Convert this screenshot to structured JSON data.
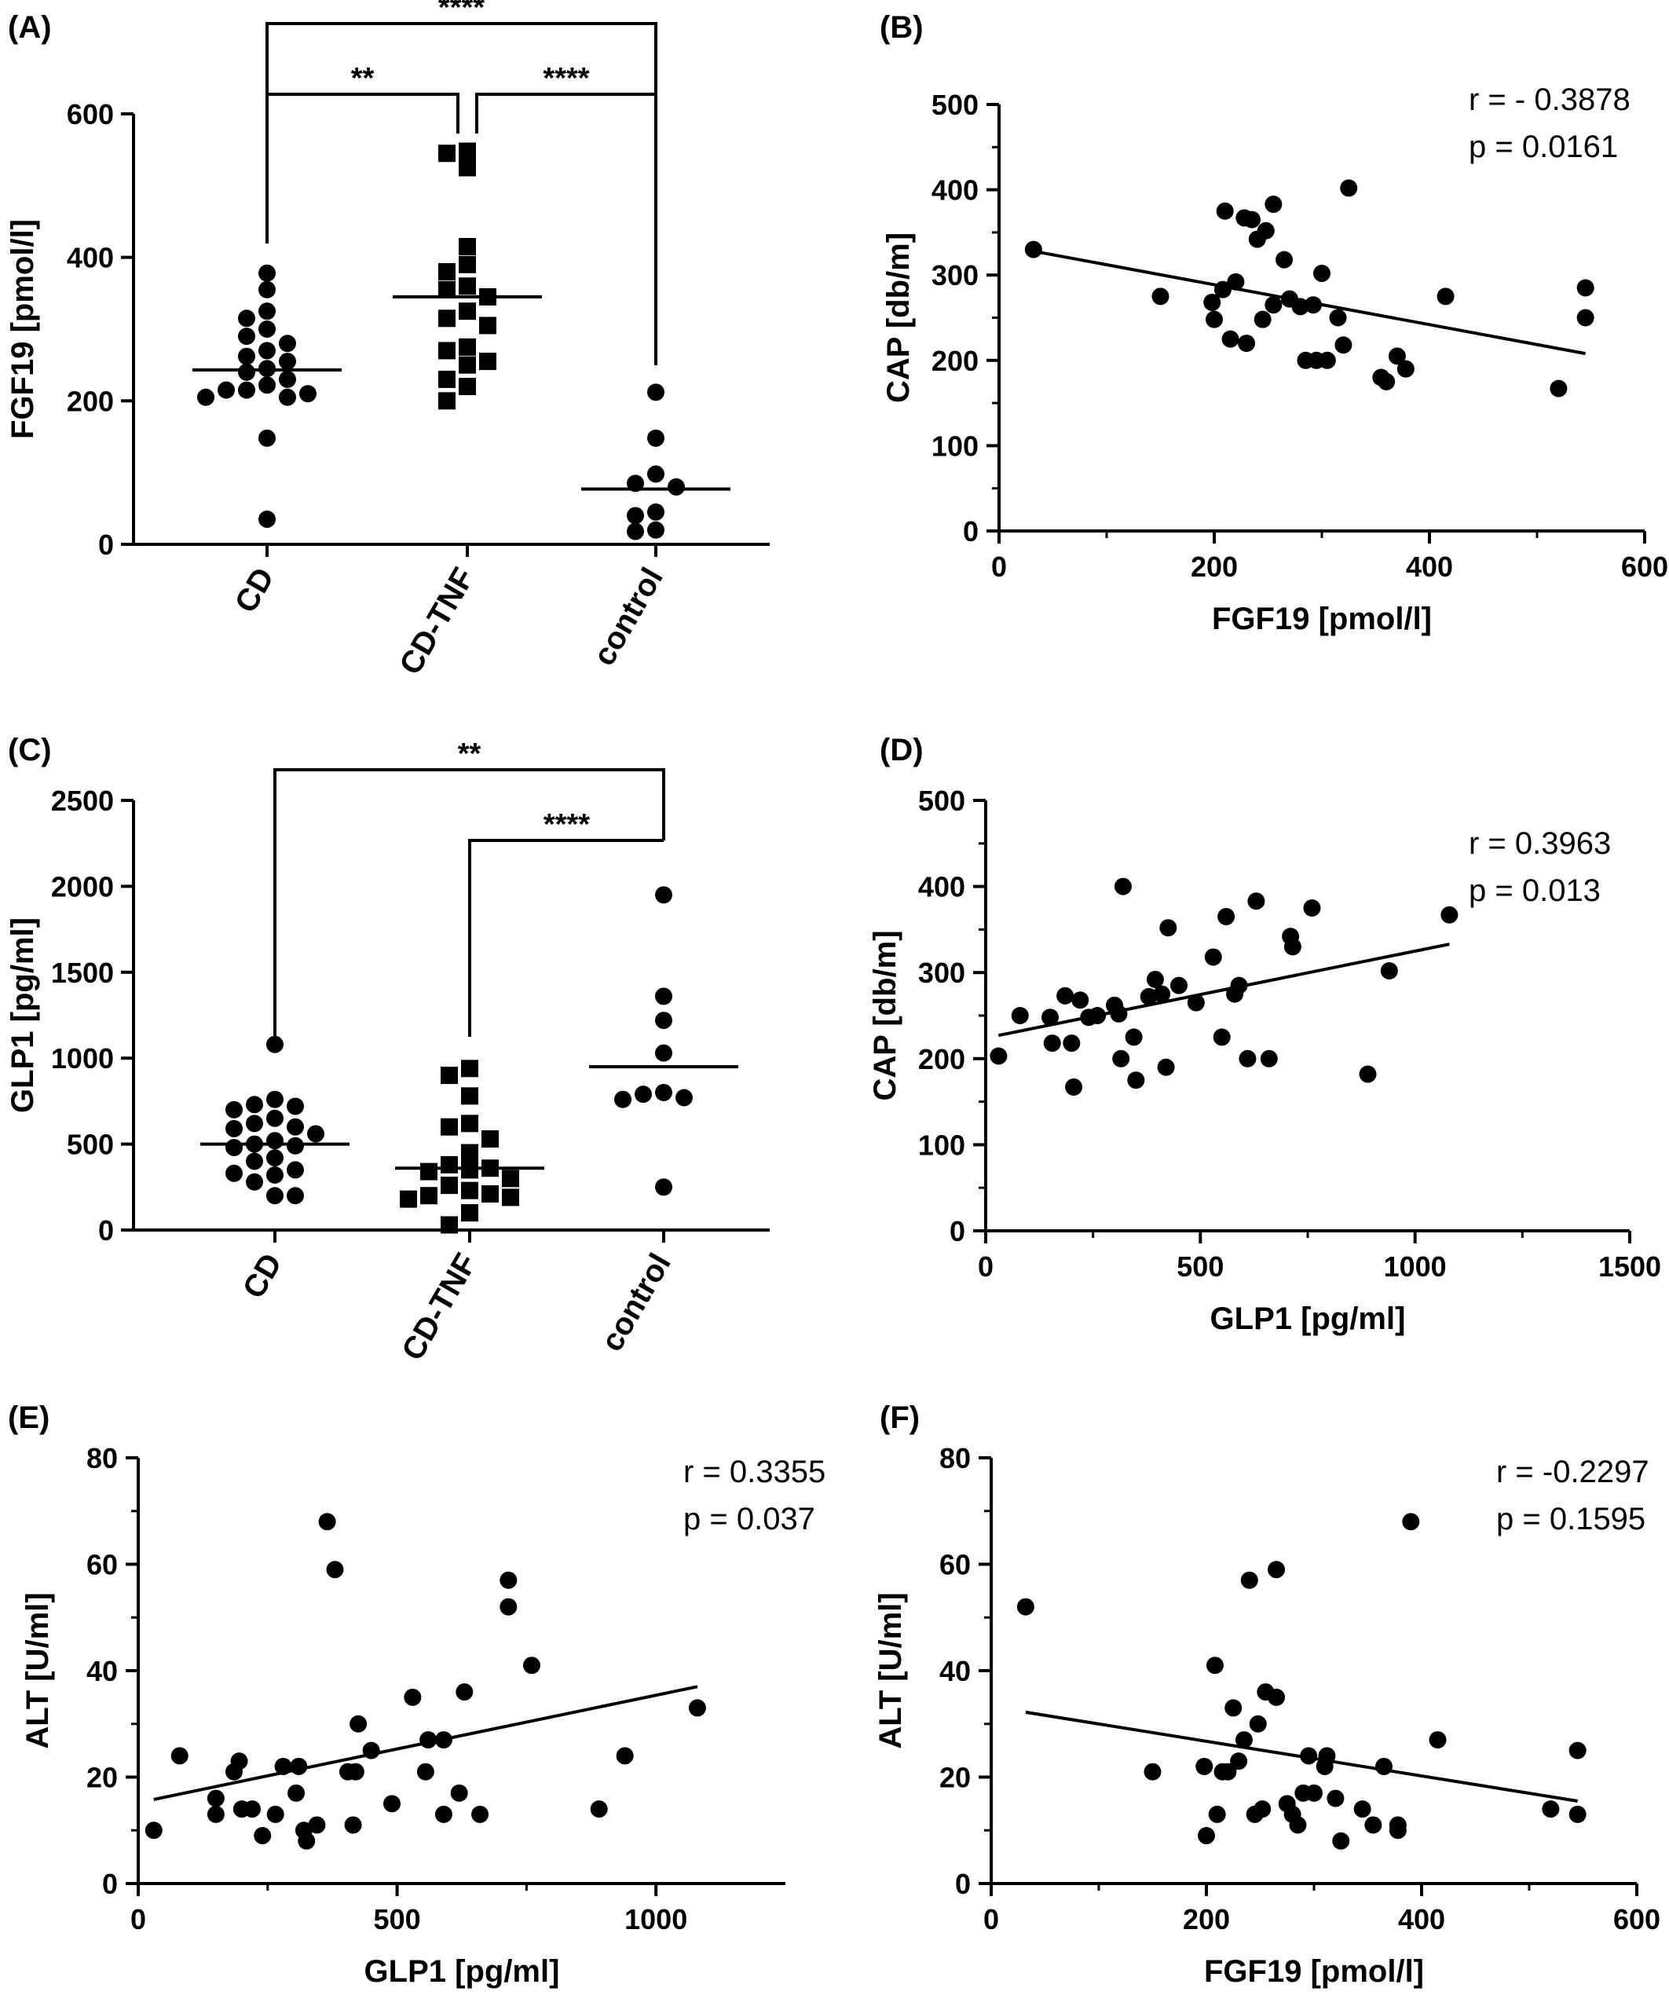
{
  "chart_data": [
    {
      "panel": "(A)",
      "type": "scatter",
      "categories": [
        "CD",
        "CD-TNF",
        "control"
      ],
      "ylabel": "FGF19 [pmol/l]",
      "ylim": [
        0,
        600
      ],
      "yticks": [
        "0",
        "200",
        "400",
        "600"
      ],
      "marker_shapes": [
        "circle",
        "square",
        "circle"
      ],
      "groups": [
        {
          "category": "CD",
          "values": [
            378,
            355,
            325,
            315,
            300,
            290,
            280,
            270,
            262,
            255,
            245,
            240,
            230,
            222,
            215,
            215,
            210,
            205,
            205,
            148,
            35
          ],
          "median": 243
        },
        {
          "category": "CD-TNF",
          "values": [
            548,
            545,
            525,
            415,
            390,
            380,
            360,
            355,
            345,
            325,
            315,
            305,
            275,
            270,
            255,
            250,
            230,
            220,
            200
          ],
          "median": 345
        },
        {
          "category": "control",
          "values": [
            212,
            148,
            98,
            85,
            80,
            45,
            40,
            20,
            18
          ],
          "median": 77
        }
      ],
      "significance": [
        {
          "from": "CD",
          "to": "CD-TNF",
          "label": "**"
        },
        {
          "from": "CD-TNF",
          "to": "control",
          "label": "****"
        },
        {
          "from": "CD",
          "to": "control",
          "label": "****"
        }
      ]
    },
    {
      "panel": "(B)",
      "type": "scatter",
      "xlabel": "FGF19 [pmol/l]",
      "ylabel": "CAP [db/m]",
      "xlim": [
        0,
        600
      ],
      "ylim": [
        0,
        500
      ],
      "xticks": [
        "0",
        "200",
        "400",
        "600"
      ],
      "yticks": [
        "0",
        "100",
        "200",
        "300",
        "400",
        "500"
      ],
      "annotation": [
        "r = - 0.3878",
        "p = 0.0161"
      ],
      "points": [
        [
          32,
          330
        ],
        [
          150,
          275
        ],
        [
          198,
          268
        ],
        [
          200,
          248
        ],
        [
          208,
          283
        ],
        [
          210,
          375
        ],
        [
          215,
          225
        ],
        [
          220,
          292
        ],
        [
          228,
          367
        ],
        [
          230,
          220
        ],
        [
          235,
          365
        ],
        [
          240,
          342
        ],
        [
          245,
          248
        ],
        [
          248,
          352
        ],
        [
          255,
          383
        ],
        [
          255,
          265
        ],
        [
          265,
          318
        ],
        [
          270,
          272
        ],
        [
          280,
          263
        ],
        [
          285,
          200
        ],
        [
          292,
          265
        ],
        [
          295,
          200
        ],
        [
          300,
          302
        ],
        [
          305,
          200
        ],
        [
          315,
          250
        ],
        [
          325,
          402
        ],
        [
          320,
          218
        ],
        [
          355,
          180
        ],
        [
          360,
          175
        ],
        [
          370,
          205
        ],
        [
          378,
          190
        ],
        [
          415,
          275
        ],
        [
          520,
          167
        ],
        [
          545,
          285
        ],
        [
          545,
          250
        ]
      ],
      "fit_line": [
        [
          32,
          328
        ],
        [
          545,
          208
        ]
      ]
    },
    {
      "panel": "(C)",
      "type": "scatter",
      "categories": [
        "CD",
        "CD-TNF",
        "control"
      ],
      "ylabel": "GLP1 [pg/ml]",
      "ylim": [
        0,
        2500
      ],
      "yticks": [
        "0",
        "500",
        "1000",
        "1500",
        "2000",
        "2500"
      ],
      "marker_shapes": [
        "circle",
        "square",
        "circle"
      ],
      "groups": [
        {
          "category": "CD",
          "values": [
            1080,
            760,
            730,
            720,
            700,
            650,
            620,
            600,
            590,
            560,
            520,
            500,
            490,
            480,
            420,
            400,
            350,
            330,
            320,
            280,
            200,
            200
          ],
          "median": 500
        },
        {
          "category": "CD-TNF",
          "values": [
            940,
            900,
            780,
            620,
            600,
            530,
            450,
            380,
            360,
            350,
            340,
            300,
            260,
            230,
            210,
            200,
            190,
            180,
            100,
            30
          ],
          "median": 360
        },
        {
          "category": "control",
          "values": [
            1950,
            1360,
            1220,
            1030,
            800,
            790,
            770,
            760,
            250
          ],
          "median": 950
        }
      ],
      "significance": [
        {
          "from": "CD-TNF",
          "to": "control",
          "label": "****"
        },
        {
          "from": "CD",
          "to": "control",
          "label": "**"
        }
      ]
    },
    {
      "panel": "(D)",
      "type": "scatter",
      "xlabel": "GLP1 [pg/ml]",
      "ylabel": "CAP [db/m]",
      "xlim": [
        0,
        1500
      ],
      "ylim": [
        0,
        500
      ],
      "xticks": [
        "0",
        "500",
        "1000",
        "1500"
      ],
      "yticks": [
        "0",
        "100",
        "200",
        "300",
        "400",
        "500"
      ],
      "annotation": [
        "r = 0.3963",
        "p = 0.013"
      ],
      "points": [
        [
          30,
          203
        ],
        [
          80,
          250
        ],
        [
          150,
          248
        ],
        [
          155,
          218
        ],
        [
          185,
          273
        ],
        [
          200,
          218
        ],
        [
          205,
          167
        ],
        [
          220,
          268
        ],
        [
          240,
          248
        ],
        [
          260,
          250
        ],
        [
          300,
          262
        ],
        [
          310,
          252
        ],
        [
          315,
          200
        ],
        [
          320,
          400
        ],
        [
          345,
          225
        ],
        [
          350,
          175
        ],
        [
          380,
          272
        ],
        [
          395,
          292
        ],
        [
          410,
          275
        ],
        [
          420,
          190
        ],
        [
          425,
          352
        ],
        [
          450,
          285
        ],
        [
          490,
          265
        ],
        [
          530,
          318
        ],
        [
          550,
          225
        ],
        [
          560,
          365
        ],
        [
          580,
          275
        ],
        [
          590,
          285
        ],
        [
          610,
          200
        ],
        [
          630,
          383
        ],
        [
          660,
          200
        ],
        [
          710,
          342
        ],
        [
          715,
          330
        ],
        [
          760,
          375
        ],
        [
          890,
          182
        ],
        [
          940,
          302
        ],
        [
          1080,
          367
        ]
      ],
      "fit_line": [
        [
          30,
          227
        ],
        [
          1080,
          333
        ]
      ]
    },
    {
      "panel": "(E)",
      "type": "scatter",
      "xlabel": "GLP1 [pg/ml]",
      "ylabel": "ALT [U/ml]",
      "xlim": [
        0,
        1250
      ],
      "ylim": [
        0,
        80
      ],
      "xticks": [
        "0",
        "500",
        "1000"
      ],
      "yticks": [
        "0",
        "20",
        "40",
        "60",
        "80"
      ],
      "annotation": [
        "r = 0.3355",
        "p = 0.037"
      ],
      "points": [
        [
          30,
          10
        ],
        [
          80,
          24
        ],
        [
          150,
          13
        ],
        [
          150,
          16
        ],
        [
          185,
          21
        ],
        [
          195,
          23
        ],
        [
          200,
          14
        ],
        [
          220,
          14
        ],
        [
          240,
          9
        ],
        [
          265,
          13
        ],
        [
          280,
          22
        ],
        [
          305,
          17
        ],
        [
          310,
          22
        ],
        [
          320,
          10
        ],
        [
          325,
          8
        ],
        [
          345,
          11
        ],
        [
          365,
          68
        ],
        [
          380,
          59
        ],
        [
          405,
          21
        ],
        [
          415,
          11
        ],
        [
          420,
          21
        ],
        [
          425,
          30
        ],
        [
          450,
          25
        ],
        [
          490,
          15
        ],
        [
          530,
          35
        ],
        [
          555,
          21
        ],
        [
          560,
          27
        ],
        [
          590,
          27
        ],
        [
          590,
          13
        ],
        [
          620,
          17
        ],
        [
          630,
          36
        ],
        [
          660,
          13
        ],
        [
          715,
          57
        ],
        [
          715,
          52
        ],
        [
          760,
          41
        ],
        [
          890,
          14
        ],
        [
          940,
          24
        ],
        [
          1080,
          33
        ]
      ],
      "fit_line": [
        [
          30,
          15.8
        ],
        [
          1080,
          37
        ]
      ]
    },
    {
      "panel": "(F)",
      "type": "scatter",
      "xlabel": "FGF19 [pmol/l]",
      "ylabel": "ALT [U/ml]",
      "xlim": [
        0,
        600
      ],
      "ylim": [
        0,
        80
      ],
      "xticks": [
        "0",
        "200",
        "400",
        "600"
      ],
      "yticks": [
        "0",
        "20",
        "40",
        "60",
        "80"
      ],
      "annotation": [
        "r = -0.2297",
        "p =  0.1595"
      ],
      "points": [
        [
          32,
          52
        ],
        [
          150,
          21
        ],
        [
          198,
          22
        ],
        [
          200,
          9
        ],
        [
          208,
          41
        ],
        [
          210,
          13
        ],
        [
          215,
          21
        ],
        [
          220,
          21
        ],
        [
          225,
          33
        ],
        [
          230,
          23
        ],
        [
          235,
          27
        ],
        [
          240,
          57
        ],
        [
          245,
          13
        ],
        [
          248,
          30
        ],
        [
          252,
          14
        ],
        [
          255,
          36
        ],
        [
          265,
          35
        ],
        [
          265,
          59
        ],
        [
          275,
          15
        ],
        [
          280,
          13
        ],
        [
          285,
          11
        ],
        [
          290,
          17
        ],
        [
          295,
          24
        ],
        [
          300,
          17
        ],
        [
          310,
          22
        ],
        [
          312,
          24
        ],
        [
          320,
          16
        ],
        [
          325,
          8
        ],
        [
          345,
          14
        ],
        [
          355,
          11
        ],
        [
          365,
          22
        ],
        [
          378,
          11
        ],
        [
          378,
          10
        ],
        [
          390,
          68
        ],
        [
          415,
          27
        ],
        [
          520,
          14
        ],
        [
          545,
          25
        ],
        [
          545,
          13
        ]
      ],
      "fit_line": [
        [
          32,
          32.2
        ],
        [
          545,
          15.5
        ]
      ]
    }
  ]
}
